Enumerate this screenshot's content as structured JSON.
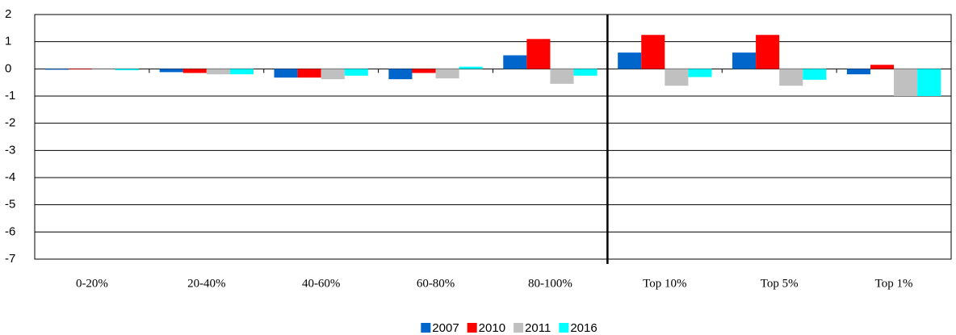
{
  "chart_data": {
    "type": "bar",
    "categories": [
      "0-20%",
      "20-40%",
      "40-60%",
      "60-80%",
      "80-100%",
      "Top 10%",
      "Top 5%",
      "Top 1%"
    ],
    "series": [
      {
        "name": "2007",
        "color": "#0066cc",
        "values": [
          -0.03,
          -0.12,
          -0.32,
          -0.38,
          0.5,
          0.6,
          0.6,
          -0.2
        ]
      },
      {
        "name": "2010",
        "color": "#ff0000",
        "values": [
          -0.02,
          -0.15,
          -0.32,
          -0.15,
          1.1,
          1.25,
          1.25,
          0.15
        ]
      },
      {
        "name": "2011",
        "color": "#c0c0c0",
        "values": [
          0,
          -0.2,
          -0.38,
          -0.35,
          -0.55,
          -0.62,
          -0.62,
          -1.0
        ]
      },
      {
        "name": "2016",
        "color": "#00ffff",
        "values": [
          -0.05,
          -0.2,
          -0.25,
          0.08,
          -0.25,
          -0.3,
          -0.4,
          -1.0
        ]
      }
    ],
    "ylim": [
      -7,
      2
    ],
    "yticks": [
      -7,
      -6,
      -5,
      -4,
      -3,
      -2,
      -1,
      0,
      1,
      2
    ],
    "grid": true,
    "legend": "bottom"
  }
}
